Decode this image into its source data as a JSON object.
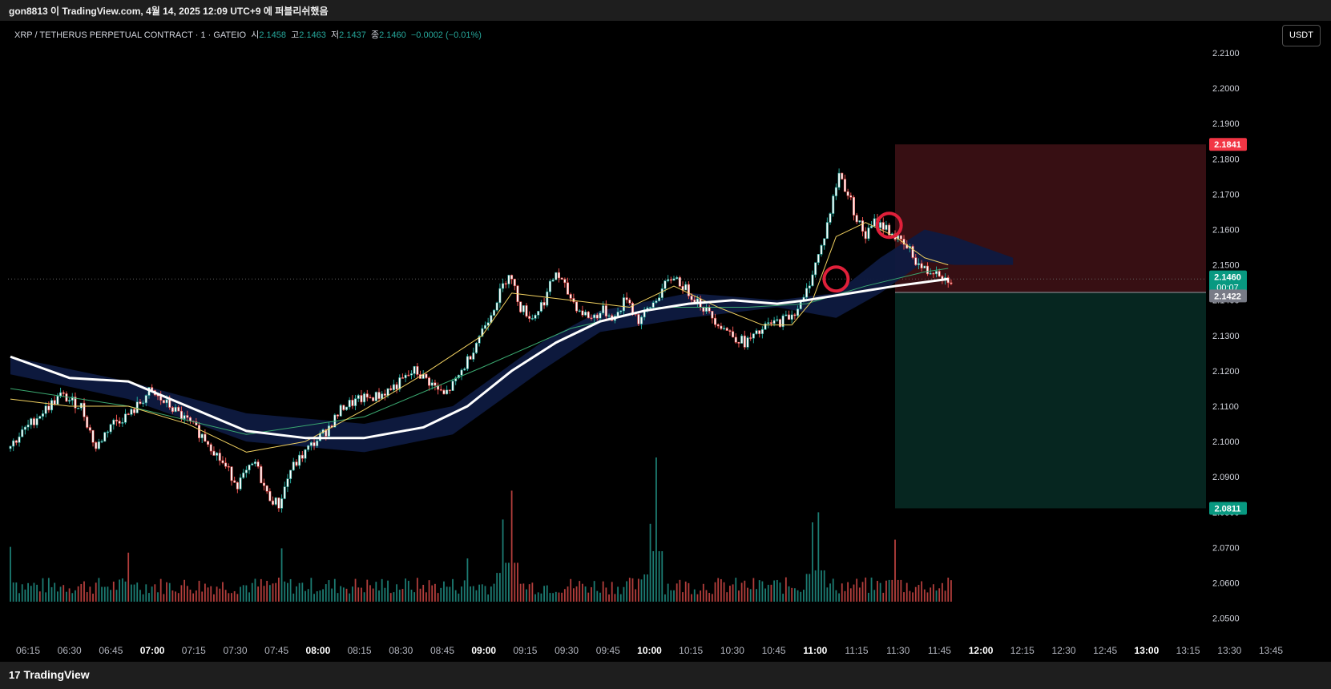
{
  "topbar": {
    "caption": "gon8813 이 TradingView.com, 4월 14, 2025 12:09 UTC+9 에 퍼블리쉬했음"
  },
  "legend": {
    "symbol": "XRP / TETHERUS PERPETUAL CONTRACT · 1 · GATEIO",
    "open_label": "시",
    "open": "2.1458",
    "high_label": "고",
    "high": "2.1463",
    "low_label": "저",
    "low": "2.1437",
    "close_label": "종",
    "close": "2.1460",
    "change": "−0.0002 (−0.01%)"
  },
  "currency_button": "USDT",
  "footer": {
    "brand": "TradingView",
    "logo_glyph": "17"
  },
  "colors": {
    "up": "#26a69a",
    "down": "#ef5350",
    "candle_body": "#ffffff",
    "stop_zone": "#3a1014",
    "target_zone": "#062822",
    "stop_label_bg": "#f23645",
    "target_label_bg": "#089981",
    "entry_label_bg": "#787b86",
    "price_label_bg": "#089981",
    "ma_slow": "#ffffff",
    "ma_fast": "#f0d060",
    "ma_mid": "#3aa870",
    "cloud": "#0e1a40",
    "marker": "#e0203a"
  },
  "price_labels": {
    "stop": "2.1841",
    "current": "2.1460",
    "countdown": "00:07",
    "entry": "2.1422",
    "target": "2.0811"
  },
  "chart_data": {
    "type": "candlestick",
    "symbol": "XRP/USDT perpetual",
    "interval": "1m",
    "xlabels": [
      "06:15",
      "06:30",
      "06:45",
      "07:00",
      "07:15",
      "07:30",
      "07:45",
      "08:00",
      "08:15",
      "08:30",
      "08:45",
      "09:00",
      "09:15",
      "09:30",
      "09:45",
      "10:00",
      "10:15",
      "10:30",
      "10:45",
      "11:00",
      "11:15",
      "11:30",
      "11:45",
      "12:00",
      "12:15",
      "12:30",
      "12:45",
      "13:00",
      "13:15",
      "13:30",
      "13:45"
    ],
    "bold_xlabels": [
      "07:00",
      "08:00",
      "09:00",
      "10:00",
      "11:00",
      "12:00",
      "13:00"
    ],
    "y_ticks": [
      "2.2100",
      "2.2000",
      "2.1900",
      "2.1800",
      "2.1700",
      "2.1600",
      "2.1500",
      "2.1400",
      "2.1300",
      "2.1200",
      "2.1100",
      "2.1000",
      "2.0900",
      "2.0800",
      "2.0700",
      "2.0600",
      "2.0500"
    ],
    "ylim": [
      2.045,
      2.215
    ],
    "price_path": [
      [
        0,
        2.098
      ],
      [
        10,
        2.107
      ],
      [
        18,
        2.113
      ],
      [
        25,
        2.11
      ],
      [
        30,
        2.098
      ],
      [
        35,
        2.105
      ],
      [
        42,
        2.108
      ],
      [
        48,
        2.114
      ],
      [
        55,
        2.11
      ],
      [
        62,
        2.105
      ],
      [
        68,
        2.1
      ],
      [
        72,
        2.095
      ],
      [
        78,
        2.088
      ],
      [
        84,
        2.094
      ],
      [
        88,
        2.085
      ],
      [
        92,
        2.082
      ],
      [
        96,
        2.092
      ],
      [
        102,
        2.098
      ],
      [
        108,
        2.103
      ],
      [
        114,
        2.11
      ],
      [
        120,
        2.112
      ],
      [
        126,
        2.113
      ],
      [
        132,
        2.116
      ],
      [
        138,
        2.12
      ],
      [
        143,
        2.117
      ],
      [
        148,
        2.113
      ],
      [
        152,
        2.117
      ],
      [
        156,
        2.123
      ],
      [
        160,
        2.13
      ],
      [
        163,
        2.135
      ],
      [
        167,
        2.142
      ],
      [
        170,
        2.148
      ],
      [
        174,
        2.138
      ],
      [
        178,
        2.135
      ],
      [
        182,
        2.14
      ],
      [
        186,
        2.148
      ],
      [
        190,
        2.142
      ],
      [
        194,
        2.137
      ],
      [
        198,
        2.135
      ],
      [
        202,
        2.137
      ],
      [
        206,
        2.135
      ],
      [
        210,
        2.141
      ],
      [
        214,
        2.134
      ],
      [
        218,
        2.138
      ],
      [
        222,
        2.143
      ],
      [
        226,
        2.147
      ],
      [
        230,
        2.143
      ],
      [
        234,
        2.14
      ],
      [
        238,
        2.136
      ],
      [
        242,
        2.133
      ],
      [
        246,
        2.13
      ],
      [
        250,
        2.128
      ],
      [
        254,
        2.13
      ],
      [
        258,
        2.133
      ],
      [
        262,
        2.134
      ],
      [
        266,
        2.136
      ],
      [
        270,
        2.14
      ],
      [
        273,
        2.148
      ],
      [
        276,
        2.155
      ],
      [
        279,
        2.165
      ],
      [
        282,
        2.176
      ],
      [
        284,
        2.172
      ],
      [
        286,
        2.168
      ],
      [
        288,
        2.163
      ],
      [
        291,
        2.158
      ],
      [
        294,
        2.162
      ],
      [
        297,
        2.161
      ],
      [
        300,
        2.159
      ],
      [
        303,
        2.156
      ],
      [
        306,
        2.154
      ],
      [
        309,
        2.15
      ],
      [
        312,
        2.148
      ],
      [
        315,
        2.149
      ],
      [
        318,
        2.146
      ]
    ],
    "volume_spikes": [
      [
        0,
        0.38
      ],
      [
        40,
        0.34
      ],
      [
        92,
        0.37
      ],
      [
        155,
        0.3
      ],
      [
        167,
        0.57
      ],
      [
        170,
        0.77
      ],
      [
        217,
        0.54
      ],
      [
        219,
        1.0
      ],
      [
        272,
        0.55
      ],
      [
        274,
        0.62
      ],
      [
        300,
        0.43
      ]
    ],
    "indicators": {
      "ma_slow": [
        [
          0,
          2.124
        ],
        [
          20,
          2.118
        ],
        [
          40,
          2.117
        ],
        [
          60,
          2.11
        ],
        [
          80,
          2.103
        ],
        [
          100,
          2.101
        ],
        [
          120,
          2.101
        ],
        [
          140,
          2.104
        ],
        [
          155,
          2.11
        ],
        [
          170,
          2.12
        ],
        [
          185,
          2.128
        ],
        [
          200,
          2.134
        ],
        [
          215,
          2.137
        ],
        [
          230,
          2.139
        ],
        [
          245,
          2.14
        ],
        [
          260,
          2.139
        ],
        [
          270,
          2.14
        ],
        [
          285,
          2.142
        ],
        [
          300,
          2.144
        ],
        [
          318,
          2.146
        ]
      ],
      "ma_fast": [
        [
          0,
          2.112
        ],
        [
          20,
          2.11
        ],
        [
          40,
          2.11
        ],
        [
          60,
          2.105
        ],
        [
          80,
          2.097
        ],
        [
          100,
          2.1
        ],
        [
          120,
          2.109
        ],
        [
          140,
          2.119
        ],
        [
          160,
          2.13
        ],
        [
          170,
          2.142
        ],
        [
          190,
          2.14
        ],
        [
          210,
          2.138
        ],
        [
          225,
          2.144
        ],
        [
          240,
          2.138
        ],
        [
          255,
          2.133
        ],
        [
          265,
          2.133
        ],
        [
          272,
          2.14
        ],
        [
          280,
          2.158
        ],
        [
          290,
          2.162
        ],
        [
          300,
          2.158
        ],
        [
          310,
          2.152
        ],
        [
          318,
          2.15
        ]
      ],
      "ma_mid": [
        [
          0,
          2.115
        ],
        [
          40,
          2.11
        ],
        [
          80,
          2.102
        ],
        [
          120,
          2.107
        ],
        [
          160,
          2.121
        ],
        [
          190,
          2.132
        ],
        [
          220,
          2.138
        ],
        [
          250,
          2.138
        ],
        [
          270,
          2.139
        ],
        [
          290,
          2.144
        ],
        [
          310,
          2.148
        ],
        [
          318,
          2.149
        ]
      ],
      "cloud_top": [
        [
          0,
          2.124
        ],
        [
          40,
          2.117
        ],
        [
          80,
          2.108
        ],
        [
          120,
          2.105
        ],
        [
          150,
          2.11
        ],
        [
          180,
          2.128
        ],
        [
          200,
          2.137
        ],
        [
          230,
          2.142
        ],
        [
          260,
          2.14
        ],
        [
          280,
          2.142
        ],
        [
          295,
          2.152
        ],
        [
          310,
          2.16
        ],
        [
          320,
          2.158
        ],
        [
          340,
          2.152
        ]
      ],
      "cloud_bottom": [
        [
          0,
          2.119
        ],
        [
          40,
          2.112
        ],
        [
          80,
          2.1
        ],
        [
          120,
          2.097
        ],
        [
          150,
          2.102
        ],
        [
          180,
          2.12
        ],
        [
          200,
          2.131
        ],
        [
          230,
          2.135
        ],
        [
          260,
          2.138
        ],
        [
          280,
          2.135
        ],
        [
          295,
          2.142
        ],
        [
          310,
          2.151
        ],
        [
          320,
          2.15
        ],
        [
          340,
          2.15
        ]
      ]
    },
    "position": {
      "side": "short",
      "entry": 2.1422,
      "stop": 2.1841,
      "target": 2.0811,
      "start_bar": 300
    },
    "markers": [
      {
        "bar": 280,
        "price": 2.146
      },
      {
        "bar": 298,
        "price": 2.1612
      }
    ]
  }
}
